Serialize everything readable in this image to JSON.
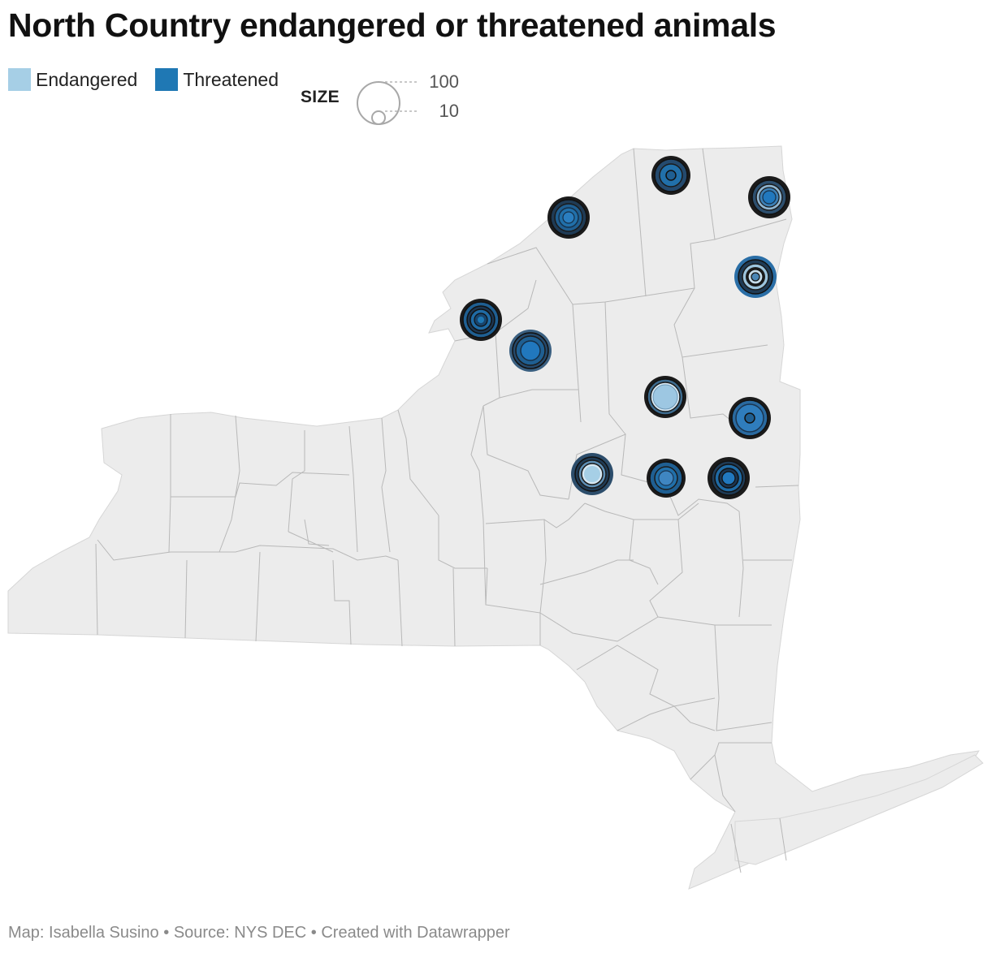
{
  "title": "North Country endangered or threatened animals",
  "legend": {
    "items": [
      {
        "label": "Endangered",
        "color": "#a6cfe6"
      },
      {
        "label": "Threatened",
        "color": "#1f78b4"
      }
    ]
  },
  "size_legend": {
    "label": "SIZE",
    "large_value": "100",
    "small_value": "10"
  },
  "footer": {
    "byline": "Map: Isabella Susino",
    "source": "Source: NYS DEC",
    "credit": "Created with Datawrapper",
    "separator": "•"
  },
  "colors": {
    "land": "#ececec",
    "county_border": "#b9b9b9",
    "endangered": "#a6cfe6",
    "threatened": "#1f78b4",
    "ring_dark": "#1a1a1a"
  },
  "markers": [
    {
      "id": "st-lawrence",
      "dominant": "threatened",
      "rings": 7
    },
    {
      "id": "franklin",
      "dominant": "threatened",
      "rings": 4
    },
    {
      "id": "clinton",
      "dominant": "threatened",
      "rings": 6
    },
    {
      "id": "essex",
      "dominant": "mixed",
      "rings": 8
    },
    {
      "id": "jefferson",
      "dominant": "threatened",
      "rings": 6
    },
    {
      "id": "lewis",
      "dominant": "threatened",
      "rings": 5
    },
    {
      "id": "hamilton",
      "dominant": "endangered",
      "rings": 4
    },
    {
      "id": "warren",
      "dominant": "threatened",
      "rings": 5
    },
    {
      "id": "herkimer-south",
      "dominant": "endangered",
      "rings": 5
    },
    {
      "id": "fulton",
      "dominant": "threatened",
      "rings": 4
    },
    {
      "id": "saratoga",
      "dominant": "threatened",
      "rings": 5
    }
  ]
}
